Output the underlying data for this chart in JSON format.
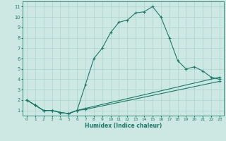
{
  "xlabel": "Humidex (Indice chaleur)",
  "xlim": [
    -0.5,
    23.5
  ],
  "ylim": [
    0.5,
    11.5
  ],
  "xticks": [
    0,
    1,
    2,
    3,
    4,
    5,
    6,
    7,
    8,
    9,
    10,
    11,
    12,
    13,
    14,
    15,
    16,
    17,
    18,
    19,
    20,
    21,
    22,
    23
  ],
  "yticks": [
    1,
    2,
    3,
    4,
    5,
    6,
    7,
    8,
    9,
    10,
    11
  ],
  "background_color": "#cde8e3",
  "grid_color": "#a8d5cc",
  "line_color": "#1a7a6a",
  "line1_x": [
    0,
    1,
    2,
    3,
    4,
    5,
    6,
    7,
    8,
    9,
    10,
    11,
    12,
    13,
    14,
    15,
    16,
    17,
    18,
    19,
    20,
    21,
    22,
    23
  ],
  "line1_y": [
    2.0,
    1.5,
    1.0,
    1.0,
    0.8,
    0.7,
    1.0,
    3.5,
    6.0,
    7.0,
    8.5,
    9.5,
    9.7,
    10.4,
    10.5,
    11.0,
    10.0,
    8.0,
    5.8,
    5.0,
    5.2,
    4.8,
    4.2,
    4.0
  ],
  "line2_x": [
    0,
    1,
    2,
    3,
    4,
    5,
    6,
    7,
    23
  ],
  "line2_y": [
    2.0,
    1.5,
    1.0,
    1.0,
    0.8,
    0.7,
    1.0,
    1.2,
    4.2
  ],
  "line3_x": [
    0,
    1,
    2,
    3,
    4,
    5,
    6,
    7,
    23
  ],
  "line3_y": [
    2.0,
    1.5,
    1.0,
    1.0,
    0.8,
    0.7,
    1.0,
    1.1,
    3.8
  ]
}
